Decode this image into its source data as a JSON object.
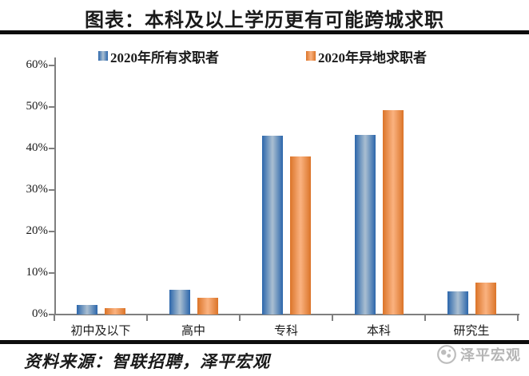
{
  "page": {
    "title": "图表：本科及以上学历更有可能跨城求职",
    "source": "资料来源：智联招聘，泽平宏观",
    "watermark": "泽平宏观"
  },
  "chart_data": {
    "type": "bar",
    "title": "图表：本科及以上学历更有可能跨城求职",
    "categories": [
      "初中及以下",
      "高中",
      "专科",
      "本科",
      "研究生"
    ],
    "series": [
      {
        "name": "2020年所有求职者",
        "values": [
          2.4,
          5.9,
          43.0,
          43.2,
          5.6
        ]
      },
      {
        "name": "2020年异地求职者",
        "values": [
          1.5,
          4.0,
          38.0,
          49.3,
          7.6
        ]
      }
    ],
    "ylim": [
      0,
      60
    ],
    "ytick_step": 10,
    "ytick_suffix": "%",
    "legend_position": "top",
    "grid": false
  },
  "colors": {
    "series1_edge": "#2B66AB",
    "series1_center": "#A6BCD0",
    "series2_edge": "#DB7428",
    "series2_center": "#F9B07D",
    "axis": "#7F7F7F",
    "rule": "#0D0D0D",
    "watermark": "#B5B5B5"
  }
}
